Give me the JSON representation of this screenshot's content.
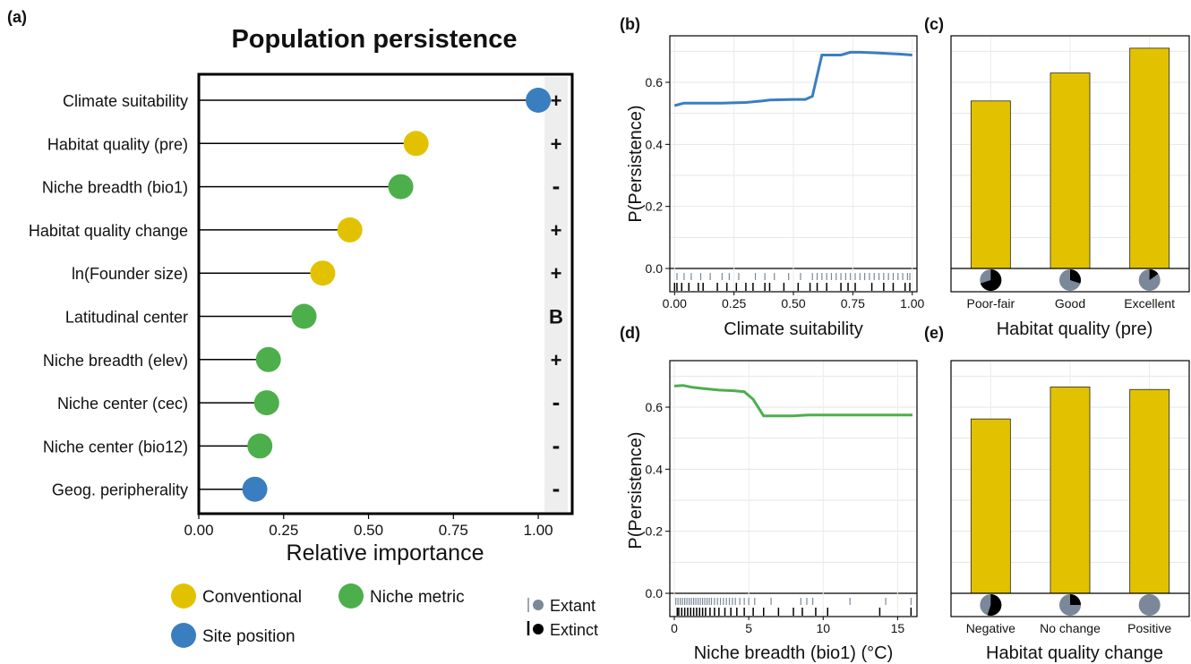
{
  "colors": {
    "conventional": "#E2C200",
    "niche": "#4CAF4C",
    "site": "#3A7EC0",
    "line_b": "#3A7EC0",
    "line_d": "#4CAF4C",
    "bar": "#E2C200",
    "extant": "#7A8899",
    "extinct": "#000000",
    "sign_strip": "#EEEEEE"
  },
  "chart_data": [
    {
      "panel": "(a)",
      "type": "lollipop",
      "title": "Population persistence",
      "xlabel": "Relative importance",
      "xlim": [
        0,
        1.1
      ],
      "xticks": [
        "0.00",
        "0.25",
        "0.50",
        "0.75",
        "1.00"
      ],
      "categories": [
        "Climate suitability",
        "Habitat quality (pre)",
        "Niche breadth (bio1)",
        "Habitat quality change",
        "ln(Founder size)",
        "Latitudinal center",
        "Niche breadth (elev)",
        "Niche center (cec)",
        "Niche center (bio12)",
        "Geog. peripherality"
      ],
      "values": [
        1.0,
        0.64,
        0.595,
        0.445,
        0.365,
        0.31,
        0.205,
        0.2,
        0.18,
        0.165
      ],
      "groups": [
        "site",
        "conventional",
        "niche",
        "conventional",
        "conventional",
        "niche",
        "niche",
        "niche",
        "niche",
        "site"
      ],
      "signs": [
        "+",
        "+",
        "-",
        "+",
        "+",
        "B",
        "+",
        "-",
        "-",
        "-"
      ],
      "legend": [
        {
          "key": "conventional",
          "label": "Conventional"
        },
        {
          "key": "niche",
          "label": "Niche metric"
        },
        {
          "key": "site",
          "label": "Site position"
        }
      ],
      "rug_legend": {
        "extant": "Extant",
        "extinct": "Extinct"
      }
    },
    {
      "panel": "(b)",
      "type": "line",
      "xlabel": "Climate suitability",
      "ylabel": "P(Persistence)",
      "xlim": [
        -0.02,
        1.02
      ],
      "ylim": [
        -0.075,
        0.75
      ],
      "xticks": [
        "0.00",
        "0.25",
        "0.50",
        "0.75",
        "1.00"
      ],
      "yticks": [
        "0.0",
        "0.2",
        "0.4",
        "0.6"
      ],
      "x": [
        0.0,
        0.04,
        0.1,
        0.2,
        0.3,
        0.37,
        0.4,
        0.5,
        0.55,
        0.58,
        0.62,
        0.7,
        0.74,
        0.78,
        0.85,
        0.95,
        1.0
      ],
      "y": [
        0.525,
        0.533,
        0.533,
        0.533,
        0.535,
        0.54,
        0.543,
        0.545,
        0.545,
        0.555,
        0.688,
        0.688,
        0.697,
        0.697,
        0.695,
        0.691,
        0.688
      ],
      "rug_extant": [
        0.01,
        0.04,
        0.07,
        0.11,
        0.15,
        0.2,
        0.23,
        0.27,
        0.34,
        0.38,
        0.42,
        0.48,
        0.53,
        0.58,
        0.6,
        0.62,
        0.64,
        0.66,
        0.68,
        0.7,
        0.72,
        0.74,
        0.76,
        0.78,
        0.8,
        0.82,
        0.84,
        0.86,
        0.88,
        0.9,
        0.92,
        0.94,
        0.96,
        0.98,
        0.99
      ],
      "rug_extinct": [
        0.0,
        0.01,
        0.03,
        0.06,
        0.1,
        0.12,
        0.18,
        0.22,
        0.26,
        0.3,
        0.33,
        0.38,
        0.4,
        0.46,
        0.52,
        0.57,
        0.6,
        0.64,
        0.7,
        0.73,
        0.76,
        0.83,
        0.88,
        0.92,
        0.97,
        0.99
      ]
    },
    {
      "panel": "(c)",
      "type": "bar",
      "xlabel": "Habitat quality (pre)",
      "ylim": [
        -0.075,
        0.75
      ],
      "categories": [
        "Poor-fair",
        "Good",
        "Excellent"
      ],
      "values": [
        0.54,
        0.63,
        0.71
      ],
      "extinct_fraction": [
        0.7,
        0.3,
        0.15
      ]
    },
    {
      "panel": "(d)",
      "type": "line",
      "xlabel": "Niche breadth (bio1) (°C)",
      "ylabel": "P(Persistence)",
      "xlim": [
        -0.3,
        16.3
      ],
      "ylim": [
        -0.075,
        0.75
      ],
      "xticks": [
        "0",
        "5",
        "10",
        "15"
      ],
      "yticks": [
        "0.0",
        "0.2",
        "0.4",
        "0.6"
      ],
      "x": [
        0,
        0.6,
        1.2,
        2,
        3,
        4,
        4.7,
        5.3,
        6,
        7,
        8,
        9,
        10,
        12,
        14,
        16
      ],
      "y": [
        0.668,
        0.67,
        0.664,
        0.66,
        0.655,
        0.653,
        0.65,
        0.625,
        0.572,
        0.572,
        0.572,
        0.575,
        0.575,
        0.575,
        0.575,
        0.575
      ],
      "rug_extant": [
        0.1,
        0.25,
        0.4,
        0.55,
        0.7,
        0.85,
        1.0,
        1.15,
        1.3,
        1.45,
        1.6,
        1.75,
        1.9,
        2.05,
        2.2,
        2.35,
        2.5,
        2.7,
        2.9,
        3.1,
        3.3,
        3.5,
        3.7,
        3.9,
        4.1,
        4.4,
        4.7,
        5.0,
        5.4,
        6.5,
        8.5,
        8.9,
        9.3,
        11.8,
        14.2,
        15.9
      ],
      "rug_extinct": [
        0.2,
        0.3,
        0.5,
        0.7,
        0.9,
        1.1,
        1.3,
        1.5,
        1.7,
        1.9,
        2.1,
        2.4,
        2.7,
        3.0,
        3.4,
        3.8,
        4.2,
        4.7,
        5.3,
        6.0,
        7.0,
        8.0,
        8.6,
        9.5,
        10.3,
        13.8,
        15.9
      ]
    },
    {
      "panel": "(e)",
      "type": "bar",
      "xlabel": "Habitat quality change",
      "ylim": [
        -0.075,
        0.75
      ],
      "categories": [
        "Negative",
        "No change",
        "Positive"
      ],
      "values": [
        0.562,
        0.665,
        0.657
      ],
      "extinct_fraction": [
        0.55,
        0.25,
        0.0
      ]
    }
  ]
}
